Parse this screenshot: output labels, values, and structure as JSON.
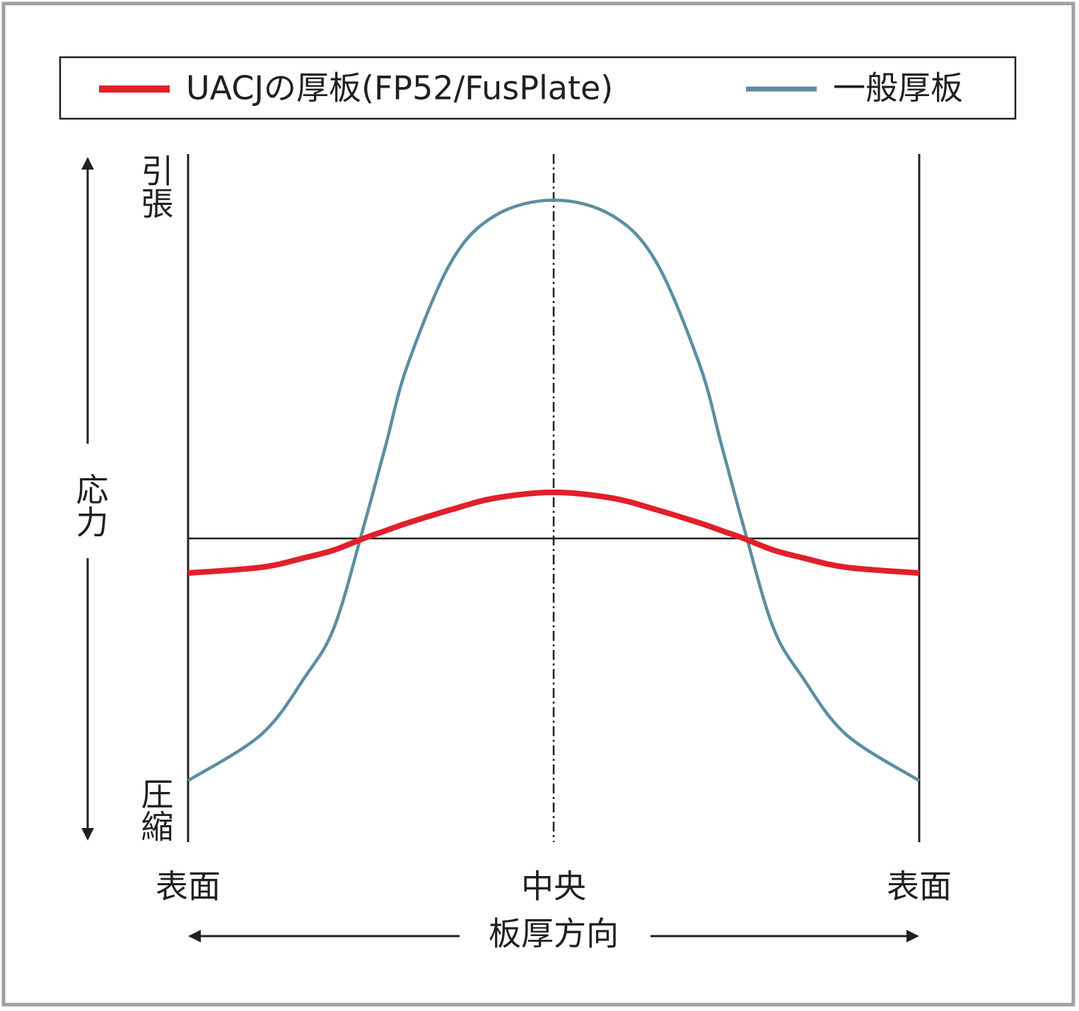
{
  "chart_data": {
    "type": "line",
    "xlabel": "板厚方向",
    "ylabel": "応力",
    "x": [
      0,
      1,
      1.6,
      2,
      2.4,
      2.7,
      3,
      3.6,
      4.2,
      5,
      5.8,
      6.4,
      7,
      7.3,
      7.6,
      8,
      8.4,
      9,
      10
    ],
    "series": [
      {
        "name": "UACJの厚板(FP52/FusPlate)",
        "color": "#e0202b",
        "values": [
          -0.9,
          -0.75,
          -0.5,
          -0.3,
          0,
          0.2,
          0.4,
          0.75,
          1.05,
          1.2,
          1.05,
          0.75,
          0.4,
          0.2,
          0,
          -0.3,
          -0.5,
          -0.75,
          -0.9
        ]
      },
      {
        "name": "一般厚板",
        "color": "#5b8fa0",
        "values": [
          -6.3,
          -5.1,
          -3.6,
          -2.3,
          0.3,
          2.4,
          4.5,
          7.2,
          8.4,
          8.8,
          8.4,
          7.2,
          4.5,
          2.4,
          0.3,
          -2.3,
          -3.6,
          -5.1,
          -6.3
        ]
      }
    ],
    "xlim": [
      0,
      10
    ],
    "ylim": [
      -7.9,
      10
    ],
    "xticks": [
      {
        "value": 0,
        "label": "表面"
      },
      {
        "value": 5,
        "label": "中央"
      },
      {
        "value": 10,
        "label": "表面"
      }
    ],
    "yticks": [
      {
        "value": 10,
        "label": "引張"
      },
      {
        "value": -7.9,
        "label": "圧縮"
      }
    ]
  }
}
